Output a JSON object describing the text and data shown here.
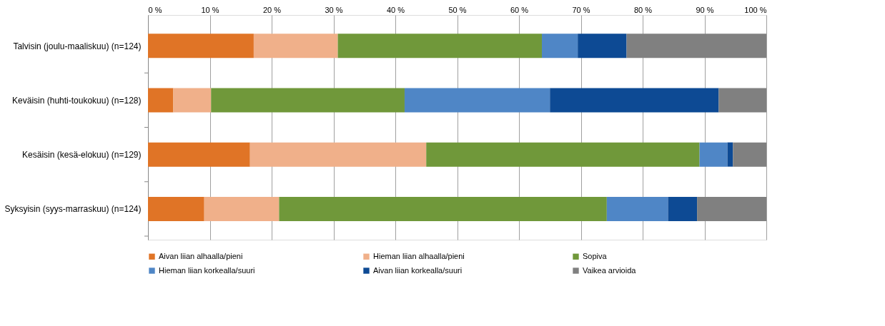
{
  "chart_data": {
    "type": "bar",
    "orientation": "horizontal",
    "stacked": true,
    "categories": [
      "Talvisin (joulu-maaliskuu)  (n=124)",
      "Keväisin (huhti-toukokuu)  (n=128)",
      "Kesäisin (kesä-elokuu) (n=129)",
      "Syksyisin (syys-marraskuu) (n=124)"
    ],
    "series": [
      {
        "name": "Aivan liian alhaalla/pieni",
        "color": "#e07426",
        "values": [
          17.1,
          4.1,
          16.5,
          9.1
        ]
      },
      {
        "name": "Hieman liian alhaalla/pieni",
        "color": "#f0b08a",
        "values": [
          13.6,
          6.1,
          28.5,
          12.1
        ]
      },
      {
        "name": "Sopiva",
        "color": "#70983a",
        "values": [
          33.0,
          31.3,
          44.2,
          53.0
        ]
      },
      {
        "name": "Hieman liian korkealla/suuri",
        "color": "#4f86c6",
        "values": [
          5.8,
          23.5,
          4.5,
          9.9
        ]
      },
      {
        "name": "Aivan liian korkealla/suuri",
        "color": "#0d4a94",
        "values": [
          7.9,
          27.3,
          0.9,
          4.7
        ]
      },
      {
        "name": "Vaikea arvioida",
        "color": "#808080",
        "values": [
          22.6,
          7.7,
          5.4,
          11.2
        ]
      }
    ],
    "xlim": [
      0,
      100
    ],
    "xticks": [
      {
        "value": 0,
        "label": "0 %"
      },
      {
        "value": 10,
        "label": "10 %"
      },
      {
        "value": 20,
        "label": "20 %"
      },
      {
        "value": 30,
        "label": "30 %"
      },
      {
        "value": 40,
        "label": "40 %"
      },
      {
        "value": 50,
        "label": "50 %"
      },
      {
        "value": 60,
        "label": "60 %"
      },
      {
        "value": 70,
        "label": "70 %"
      },
      {
        "value": 80,
        "label": "80 %"
      },
      {
        "value": 90,
        "label": "90 %"
      },
      {
        "value": 100,
        "label": "100 %"
      }
    ],
    "grid": "x",
    "legend": "bottom"
  }
}
